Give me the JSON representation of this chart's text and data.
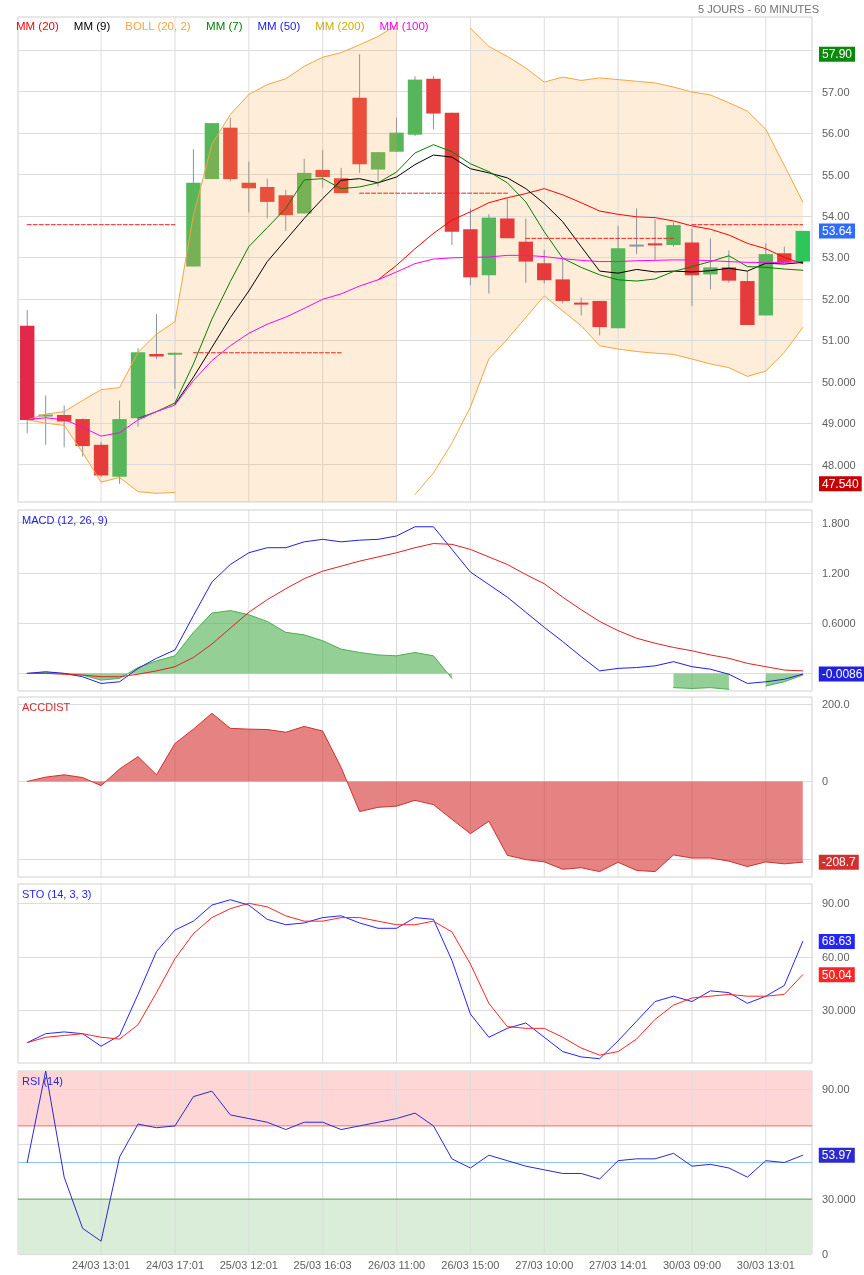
{
  "chart_data": [
    {
      "type": "candlestick",
      "subtitle": "5 JOURS - 60 MINUTES",
      "categories": [
        null,
        null,
        null,
        null,
        null,
        null,
        null,
        null,
        null,
        null,
        null,
        null,
        null,
        null,
        null,
        null,
        null,
        null,
        null,
        null,
        null,
        null,
        null,
        null,
        null,
        null,
        null,
        null,
        null,
        null,
        null,
        null,
        null,
        null,
        null,
        null,
        null,
        null,
        null,
        null,
        null,
        null,
        null
      ],
      "ohlc": [
        [
          51.35,
          51.73,
          48.76,
          49.08
        ],
        [
          49.18,
          49.67,
          48.48,
          49.21
        ],
        [
          49.2,
          49.43,
          48.42,
          49.04
        ],
        [
          49.1,
          49.12,
          48.2,
          48.45
        ],
        [
          48.48,
          48.55,
          47.7,
          47.74
        ],
        [
          47.71,
          49.55,
          47.54,
          49.1
        ],
        [
          49.12,
          50.81,
          48.92,
          50.71
        ],
        [
          50.67,
          51.63,
          50.55,
          50.61
        ],
        [
          50.65,
          50.71,
          49.83,
          50.7
        ],
        [
          52.78,
          55.61,
          52.78,
          54.8
        ],
        [
          54.89,
          56.24,
          54.89,
          56.24
        ],
        [
          56.13,
          56.37,
          54.83,
          54.89
        ],
        [
          54.8,
          55.31,
          54.09,
          54.67
        ],
        [
          54.7,
          54.9,
          53.94,
          54.34
        ],
        [
          54.5,
          54.63,
          53.64,
          54.02
        ],
        [
          54.06,
          55.38,
          54.06,
          55.04
        ],
        [
          55.11,
          55.59,
          54.68,
          54.94
        ],
        [
          54.91,
          55.16,
          54.55,
          54.55
        ],
        [
          56.85,
          57.9,
          55.04,
          55.25
        ],
        [
          55.12,
          55.54,
          54.71,
          55.54
        ],
        [
          55.55,
          56.37,
          55.55,
          56.01
        ],
        [
          55.96,
          57.37,
          55.93,
          57.29
        ],
        [
          57.31,
          57.37,
          56.09,
          56.47
        ],
        [
          56.49,
          56.49,
          53.3,
          53.62
        ],
        [
          53.68,
          54.18,
          52.33,
          52.52
        ],
        [
          52.57,
          54.04,
          52.13,
          53.96
        ],
        [
          53.94,
          54.43,
          53.46,
          53.46
        ],
        [
          53.38,
          53.94,
          52.39,
          52.9
        ],
        [
          52.86,
          53.18,
          52.37,
          52.45
        ],
        [
          52.47,
          52.98,
          51.89,
          51.95
        ],
        [
          51.91,
          52.03,
          51.6,
          51.87
        ],
        [
          51.95,
          51.95,
          51.12,
          51.32
        ],
        [
          51.29,
          53.76,
          51.29,
          53.22
        ],
        [
          53.31,
          54.18,
          53.08,
          53.31
        ],
        [
          53.34,
          53.92,
          52.94,
          53.29
        ],
        [
          53.3,
          53.85,
          53.26,
          53.78
        ],
        [
          53.36,
          53.7,
          51.83,
          52.57
        ],
        [
          52.59,
          53.46,
          52.23,
          52.76
        ],
        [
          52.76,
          53.17,
          52.39,
          52.44
        ],
        [
          52.43,
          52.67,
          51.37,
          51.37
        ],
        [
          51.6,
          53.34,
          51.6,
          53.08
        ],
        [
          53.1,
          53.26,
          52.89,
          52.89
        ],
        [
          52.9,
          53.64,
          52.9,
          53.64
        ]
      ],
      "colors": [
        "#e3284a",
        "#57b65a",
        "#e53b3b",
        "#e53b3b",
        "#e53b3b",
        "#57b65a",
        "#57b65a",
        "#e53b3b",
        "#57b65a",
        "#57b65a",
        "#57b65a",
        "#e53b3b",
        "#e53b3b",
        "#e53b3b",
        "#e53b3b",
        "#57b65a",
        "#e53b3b",
        "#e53b3b",
        "#e53b3b",
        "#57b65a",
        "#57b65a",
        "#57b65a",
        "#e53b3b",
        "#e53b3b",
        "#e53b3b",
        "#57b65a",
        "#e53b3b",
        "#e53b3b",
        "#e53b3b",
        "#e53b3b",
        "#e53b3b",
        "#e53b3b",
        "#57b65a",
        "#8c96a0",
        "#e53b3b",
        "#57b65a",
        "#e53b3b",
        "#57b65a",
        "#e53b3b",
        "#e53b3b",
        "#57b65a",
        "#e53b3b",
        "#2ec55a"
      ],
      "series": [
        {
          "name": "MM (20)",
          "type": "line",
          "color": "#ff0000",
          "values": [
            null,
            null,
            null,
            null,
            null,
            null,
            null,
            null,
            null,
            null,
            null,
            null,
            null,
            null,
            null,
            null,
            null,
            null,
            null,
            52.46,
            52.81,
            53.21,
            53.58,
            53.9,
            54.1,
            54.32,
            54.44,
            54.54,
            54.66,
            54.51,
            54.32,
            54.12,
            54.04,
            53.98,
            53.96,
            53.88,
            53.76,
            53.68,
            53.54,
            53.34,
            53.21,
            53.0,
            52.85
          ]
        },
        {
          "name": "MM (9)",
          "type": "line",
          "color": "#000000",
          "values": [
            null,
            null,
            null,
            null,
            null,
            null,
            null,
            null,
            49.46,
            50.11,
            50.83,
            51.55,
            52.19,
            52.9,
            53.42,
            53.94,
            54.42,
            54.86,
            54.9,
            54.8,
            54.94,
            55.24,
            55.47,
            55.42,
            55.14,
            55.04,
            54.92,
            54.66,
            54.3,
            53.86,
            53.26,
            52.67,
            52.62,
            52.71,
            52.65,
            52.67,
            52.65,
            52.68,
            52.74,
            52.67,
            52.86,
            52.84,
            52.88
          ]
        },
        {
          "name": "BOLL (20, 2)",
          "type": "line",
          "color": "#f5a442",
          "values": [
            49.08,
            49.22,
            49.28,
            49.55,
            49.81,
            49.86,
            50.71,
            51.15,
            51.45,
            null,
            null,
            null,
            null,
            null,
            null,
            null,
            null,
            null,
            null,
            null,
            null,
            null,
            null,
            null,
            58.53,
            58.09,
            57.85,
            57.57,
            57.23,
            57.35,
            57.27,
            57.33,
            57.29,
            57.25,
            57.21,
            57.11,
            56.99,
            56.92,
            56.73,
            56.53,
            56.09,
            55.22,
            54.34
          ],
          "upper": [
            49.08,
            49.22,
            49.28,
            49.55,
            49.81,
            49.86,
            50.71,
            51.15,
            51.45,
            null,
            null,
            null,
            null,
            null,
            null,
            null,
            null,
            null,
            null,
            null,
            null,
            null,
            null,
            null,
            58.53,
            58.09,
            57.85,
            57.57,
            57.23,
            57.35,
            57.27,
            57.33,
            57.29,
            57.25,
            57.21,
            57.11,
            56.99,
            56.92,
            56.73,
            56.53,
            56.09,
            55.22,
            54.34
          ],
          "lower": [
            49.08,
            49.0,
            48.95,
            48.29,
            47.58,
            47.69,
            47.35,
            47.31,
            47.33,
            null,
            null,
            null,
            null,
            null,
            null,
            null,
            null,
            null,
            null,
            null,
            null,
            null,
            null,
            null,
            49.39,
            50.55,
            51.03,
            51.55,
            52.07,
            51.71,
            51.35,
            50.87,
            50.79,
            50.73,
            50.69,
            50.66,
            50.55,
            50.43,
            50.34,
            50.13,
            50.26,
            50.71,
            51.31
          ]
        },
        {
          "type": "area",
          "color": "#f5a442",
          "values": [
            null,
            null,
            null,
            null,
            null,
            null,
            null,
            null,
            51.45,
            54.02,
            55.73,
            56.45,
            56.93,
            57.17,
            57.31,
            57.61,
            57.83,
            57.94,
            58.13,
            58.33,
            58.61,
            null,
            null,
            null,
            null,
            null,
            null,
            null,
            null,
            null,
            null,
            null,
            null,
            null,
            null,
            null,
            null,
            null,
            null,
            null,
            null,
            null,
            null
          ]
        },
        {
          "type": "line",
          "color": "#f5a442",
          "values": [
            49.08,
            49.0,
            48.95,
            48.29,
            47.58,
            47.69,
            47.35,
            47.31,
            47.33,
            null,
            null,
            null,
            null,
            null,
            null,
            null,
            null,
            null,
            null,
            null,
            null,
            47.28,
            47.8,
            48.52,
            49.39,
            50.55,
            51.03,
            51.55,
            52.07,
            51.71,
            51.35,
            50.87,
            50.79,
            50.73,
            50.69,
            50.66,
            50.55,
            50.43,
            50.34,
            50.13,
            50.26,
            50.71,
            51.31
          ]
        },
        {
          "name": "MM (7)",
          "type": "line",
          "color": "#008000",
          "values": [
            null,
            null,
            null,
            null,
            null,
            null,
            49.12,
            49.28,
            49.49,
            50.43,
            51.51,
            52.42,
            53.26,
            53.72,
            54.18,
            54.87,
            54.9,
            54.66,
            54.7,
            54.8,
            55.06,
            55.52,
            55.72,
            55.55,
            55.26,
            55.07,
            54.8,
            54.34,
            53.62,
            52.98,
            52.76,
            52.58,
            52.46,
            52.43,
            52.48,
            52.66,
            52.78,
            52.9,
            53.04,
            52.78,
            52.76,
            52.72,
            52.69
          ]
        },
        {
          "name": "MM (50)",
          "type": "line",
          "color": "#2020e0",
          "values": [
            null,
            null,
            null,
            null,
            null,
            null,
            null,
            null,
            null,
            null,
            null,
            null,
            null,
            null,
            null,
            null,
            null,
            null,
            null,
            null,
            null,
            null,
            null,
            null,
            null,
            null,
            null,
            null,
            null,
            null,
            null,
            null,
            null,
            null,
            null,
            null,
            null,
            null,
            null,
            null,
            null,
            null,
            null
          ]
        },
        {
          "name": "MM (200)",
          "type": "line",
          "color": "#c8b000",
          "values": [
            null,
            null,
            null,
            null,
            null,
            null,
            null,
            null,
            null,
            null,
            null,
            null,
            null,
            null,
            null,
            null,
            null,
            null,
            null,
            null,
            null,
            null,
            null,
            null,
            null,
            null,
            null,
            null,
            null,
            null,
            null,
            null,
            null,
            null,
            null,
            null,
            null,
            null,
            null,
            null,
            null,
            null,
            null
          ]
        },
        {
          "name": "MM (100)",
          "type": "line",
          "color": "#ff00ff",
          "values": [
            49.09,
            49.13,
            49.09,
            48.9,
            48.69,
            48.77,
            49.08,
            49.28,
            49.44,
            50.03,
            50.51,
            50.87,
            51.17,
            51.39,
            51.56,
            51.77,
            51.99,
            52.12,
            52.31,
            52.46,
            52.65,
            52.85,
            52.96,
            52.99,
            53.0,
            53.01,
            53.05,
            53.05,
            53.02,
            52.97,
            52.93,
            52.9,
            52.9,
            52.92,
            52.93,
            52.94,
            52.94,
            52.92,
            52.9,
            52.88,
            52.88,
            52.88,
            52.9
          ]
        },
        {
          "type": "line",
          "color": "#ee2222",
          "line_style": "dashed",
          "values": [
            53.79,
            53.79,
            53.79,
            53.79,
            53.79,
            53.79,
            53.79,
            53.79,
            53.79,
            null,
            null,
            null,
            null,
            null,
            null,
            null,
            null,
            null,
            null,
            null,
            null,
            null,
            null,
            null,
            null,
            null,
            null,
            null,
            null,
            null,
            null,
            null,
            null,
            null,
            null,
            null,
            null,
            null,
            null,
            null,
            null,
            null,
            null
          ]
        },
        {
          "type": "line",
          "color": "#ee2222",
          "line_style": "dashed",
          "values": [
            null,
            null,
            null,
            null,
            null,
            null,
            null,
            null,
            null,
            50.7,
            50.7,
            50.7,
            50.7,
            50.7,
            50.7,
            50.7,
            50.7,
            50.7,
            null,
            null,
            null,
            null,
            null,
            null,
            null,
            null,
            null,
            null,
            null,
            null,
            null,
            null,
            null,
            null,
            null,
            null,
            null,
            null,
            null,
            null,
            null,
            null,
            null
          ]
        },
        {
          "type": "line",
          "color": "#ee2222",
          "line_style": "dashed",
          "values": [
            null,
            null,
            null,
            null,
            null,
            null,
            null,
            null,
            null,
            null,
            null,
            null,
            null,
            null,
            null,
            null,
            null,
            null,
            54.55,
            54.55,
            54.55,
            54.55,
            54.55,
            54.55,
            54.55,
            54.55,
            54.55,
            null,
            null,
            null,
            null,
            null,
            null,
            null,
            null,
            null,
            null,
            null,
            null,
            null,
            null,
            null,
            null
          ]
        },
        {
          "type": "line",
          "color": "#ee2222",
          "line_style": "dashed",
          "values": [
            null,
            null,
            null,
            null,
            null,
            null,
            null,
            null,
            null,
            null,
            null,
            null,
            null,
            null,
            null,
            null,
            null,
            null,
            null,
            null,
            null,
            null,
            null,
            null,
            null,
            null,
            null,
            53.46,
            53.46,
            53.46,
            53.46,
            53.46,
            53.46,
            53.46,
            53.46,
            53.46,
            null,
            null,
            null,
            null,
            null,
            null,
            null
          ]
        },
        {
          "type": "line",
          "color": "#ee2222",
          "line_style": "dashed",
          "values": [
            null,
            null,
            null,
            null,
            null,
            null,
            null,
            null,
            null,
            null,
            null,
            null,
            null,
            null,
            null,
            null,
            null,
            null,
            null,
            null,
            null,
            null,
            null,
            null,
            null,
            null,
            null,
            null,
            null,
            null,
            null,
            null,
            null,
            null,
            null,
            null,
            53.79,
            53.79,
            53.79,
            53.79,
            53.79,
            53.79,
            53.79
          ]
        }
      ],
      "ylim": [
        47.1,
        58.8
      ],
      "yticks": [
        {
          "value": 48,
          "label": "48.000"
        },
        {
          "value": 49,
          "label": "49.000"
        },
        {
          "value": 50,
          "label": "50.000"
        },
        {
          "value": 51,
          "label": "51.00"
        },
        {
          "value": 52,
          "label": "52.00"
        },
        {
          "value": 53,
          "label": "53.00"
        },
        {
          "value": 54,
          "label": "54.00"
        },
        {
          "value": 55,
          "label": "55.00"
        },
        {
          "value": 56,
          "label": "56.00"
        },
        {
          "value": 57,
          "label": "57.00"
        },
        {
          "value": 58,
          "label": null
        }
      ],
      "grid": true,
      "legend": "top left",
      "annotations": [
        "57.90",
        "53.64",
        "47.540"
      ]
    },
    {
      "type": "line",
      "title": "MACD (12, 26, 9)",
      "categories": [
        null,
        null,
        null,
        null,
        null,
        null,
        null,
        null,
        null,
        null,
        null,
        null,
        null,
        null,
        null,
        null,
        null,
        null,
        null,
        null,
        null,
        null,
        null,
        null,
        null,
        null,
        null,
        null,
        null,
        null,
        null,
        null,
        null,
        null,
        null,
        null,
        null,
        null,
        null,
        null,
        null,
        null,
        null
      ],
      "series": [
        {
          "color": "#2020e0",
          "values": [
            0,
            0.02,
            0,
            -0.04,
            -0.12,
            -0.1,
            0.06,
            0.18,
            0.28,
            0.69,
            1.09,
            1.3,
            1.44,
            1.5,
            1.5,
            1.57,
            1.6,
            1.57,
            1.59,
            1.6,
            1.64,
            1.75,
            1.75,
            1.48,
            1.21,
            1.06,
            0.91,
            0.73,
            0.55,
            0.38,
            0.2,
            0.03,
            0.06,
            0.07,
            0.09,
            0.14,
            0.08,
            0.05,
            -0.01,
            -0.12,
            -0.1,
            -0.07,
            -0.0086
          ],
          "value_labels": [
            null,
            null,
            null,
            null,
            null,
            null,
            null,
            null,
            null,
            null,
            null,
            null,
            null,
            null,
            null,
            null,
            null,
            null,
            null,
            null,
            null,
            null,
            null,
            null,
            null,
            null,
            null,
            null,
            null,
            null,
            null,
            null,
            null,
            null,
            null,
            null,
            null,
            null,
            null,
            null,
            null,
            null,
            "-0.0086"
          ]
        },
        {
          "color": "#e02020",
          "values": [
            0,
            0,
            -0.01,
            -0.02,
            -0.04,
            -0.04,
            -0.01,
            0.03,
            0.08,
            0.19,
            0.35,
            0.54,
            0.73,
            0.88,
            1.01,
            1.13,
            1.22,
            1.28,
            1.34,
            1.39,
            1.44,
            1.5,
            1.55,
            1.54,
            1.48,
            1.39,
            1.3,
            1.18,
            1.07,
            0.91,
            0.76,
            0.62,
            0.51,
            0.42,
            0.36,
            0.31,
            0.27,
            0.22,
            0.18,
            0.12,
            0.08,
            0.04,
            0.03
          ]
        },
        {
          "type": "area",
          "color": "#4caf50",
          "values": [
            0,
            0.01,
            0,
            -0.02,
            -0.08,
            -0.06,
            0.07,
            0.15,
            0.21,
            0.49,
            0.72,
            0.75,
            0.7,
            0.62,
            0.49,
            0.46,
            0.39,
            0.29,
            0.25,
            0.22,
            0.21,
            0.25,
            0.21,
            -0.06,
            null,
            null,
            null,
            null,
            null,
            null,
            null,
            null,
            null,
            null,
            null,
            -0.17,
            -0.18,
            -0.17,
            -0.19,
            null,
            -0.15,
            -0.1,
            -0.02
          ]
        }
      ],
      "ylim": [
        -0.21,
        1.95
      ],
      "yticks": [
        {
          "value": 0,
          "label": null
        },
        {
          "value": 0.6,
          "label": "0.6000"
        },
        {
          "value": 1.2,
          "label": "1.200"
        },
        {
          "value": 1.8,
          "label": "1.800"
        }
      ],
      "grid": true
    },
    {
      "type": "area",
      "title": "ACCDIST",
      "categories": [
        null,
        null,
        null,
        null,
        null,
        null,
        null,
        null,
        null,
        null,
        null,
        null,
        null,
        null,
        null,
        null,
        null,
        null,
        null,
        null,
        null,
        null,
        null,
        null,
        null,
        null,
        null,
        null,
        null,
        null,
        null,
        null,
        null,
        null,
        null,
        null,
        null,
        null,
        null,
        null,
        null,
        null,
        null
      ],
      "series": [
        {
          "color": "#d32f2f",
          "values": [
            0,
            11,
            17,
            10,
            -11,
            32,
            64,
            17,
            98,
            135,
            176,
            137,
            135,
            134,
            127,
            142,
            130,
            36,
            -78,
            -67,
            -64,
            -49,
            -60,
            -98,
            -135,
            -103,
            -191,
            -202,
            -208,
            -227,
            -223,
            -233,
            -209,
            -230,
            -233,
            -190,
            -198,
            -198,
            -206,
            -220,
            -208,
            -213,
            -208.7
          ],
          "value_labels": [
            null,
            null,
            null,
            null,
            null,
            null,
            null,
            null,
            null,
            null,
            null,
            null,
            null,
            null,
            null,
            null,
            null,
            null,
            null,
            null,
            null,
            null,
            null,
            null,
            null,
            null,
            null,
            null,
            null,
            null,
            null,
            null,
            null,
            null,
            null,
            null,
            null,
            null,
            null,
            null,
            null,
            null,
            "-208.7"
          ]
        }
      ],
      "ylim": [
        -247,
        218
      ],
      "yticks": [
        {
          "value": -200,
          "label": null
        },
        0,
        {
          "value": 200,
          "label": "200.0"
        }
      ],
      "grid": true
    },
    {
      "type": "line",
      "title": "STO (14, 3, 3)",
      "categories": [
        null,
        null,
        null,
        null,
        null,
        null,
        null,
        null,
        null,
        null,
        null,
        null,
        null,
        null,
        null,
        null,
        null,
        null,
        null,
        null,
        null,
        null,
        null,
        null,
        null,
        null,
        null,
        null,
        null,
        null,
        null,
        null,
        null,
        null,
        null,
        null,
        null,
        null,
        null,
        null,
        null,
        null,
        null
      ],
      "series": [
        {
          "color": "#2424ff",
          "values": [
            12,
            17,
            18,
            17,
            10,
            16,
            39,
            63,
            75,
            80,
            89,
            92,
            89,
            81,
            78,
            79,
            82,
            83,
            79,
            76,
            76,
            82,
            81,
            58,
            28,
            15,
            20,
            23,
            15,
            7,
            4,
            3,
            13,
            24,
            35,
            38,
            35,
            41,
            40,
            34,
            38,
            44,
            68.63
          ],
          "value_labels": [
            null,
            null,
            null,
            null,
            null,
            null,
            null,
            null,
            null,
            null,
            null,
            null,
            null,
            null,
            null,
            null,
            null,
            null,
            null,
            null,
            null,
            null,
            null,
            null,
            null,
            null,
            null,
            null,
            null,
            null,
            null,
            null,
            null,
            null,
            null,
            null,
            null,
            null,
            null,
            null,
            null,
            null,
            "68.63"
          ]
        },
        {
          "color": "#ff2424",
          "values": [
            12,
            15,
            16,
            17,
            15,
            14,
            22,
            40,
            59,
            73,
            82,
            87,
            90,
            88,
            83,
            80,
            80,
            82,
            82,
            80,
            78,
            78,
            80,
            74,
            56,
            34,
            21,
            20,
            20,
            15,
            9,
            5,
            7,
            14,
            25,
            33,
            37,
            38,
            39,
            38,
            38,
            39,
            50.04
          ],
          "value_labels": [
            null,
            null,
            null,
            null,
            null,
            null,
            null,
            null,
            null,
            null,
            null,
            null,
            null,
            null,
            null,
            null,
            null,
            null,
            null,
            null,
            null,
            null,
            null,
            null,
            null,
            null,
            null,
            null,
            null,
            null,
            null,
            null,
            null,
            null,
            null,
            null,
            null,
            null,
            null,
            null,
            null,
            null,
            "50.04"
          ]
        }
      ],
      "ylim": [
        0.6,
        100.8
      ],
      "yticks": [
        {
          "value": 30,
          "label": "30.000"
        },
        {
          "value": 60,
          "label": "60.00"
        },
        {
          "value": 90,
          "label": "90.00"
        }
      ],
      "grid": true
    },
    {
      "type": "line",
      "title": "RSI (14)",
      "categories": [
        null,
        null,
        null,
        null,
        "24/03 13:01",
        null,
        null,
        null,
        "24/03 17:01",
        null,
        null,
        null,
        "25/03 12:01",
        null,
        null,
        null,
        "25/03 16:03",
        null,
        null,
        null,
        "26/03 11:00",
        null,
        null,
        null,
        "26/03 15:00",
        null,
        null,
        null,
        "27/03 10:00",
        null,
        null,
        null,
        "27/03 14:01",
        null,
        null,
        null,
        "30/03 09:00",
        null,
        null,
        null,
        "30/03 13:01",
        null,
        null
      ],
      "series": [
        {
          "color": "#2a2ad0",
          "values": [
            50,
            100,
            42,
            14,
            7,
            53,
            71,
            69,
            70,
            86,
            89,
            76,
            74,
            72,
            68,
            72,
            72,
            68,
            70,
            72,
            74,
            77,
            70,
            52,
            47,
            54,
            51,
            48,
            46,
            44,
            44,
            41,
            51,
            52,
            52,
            55,
            48,
            49,
            47,
            42,
            51,
            50,
            53.97
          ],
          "value_labels": [
            null,
            null,
            null,
            null,
            null,
            null,
            null,
            null,
            null,
            null,
            null,
            null,
            null,
            null,
            null,
            null,
            null,
            null,
            null,
            null,
            null,
            null,
            null,
            null,
            null,
            null,
            null,
            null,
            null,
            null,
            null,
            null,
            null,
            null,
            null,
            null,
            null,
            null,
            null,
            null,
            null,
            null,
            "53.97"
          ]
        }
      ],
      "ylim": [
        0,
        100
      ],
      "yticks": [
        0,
        {
          "value": 30,
          "label": "30.000"
        },
        {
          "value": 60,
          "label": null
        },
        {
          "value": 90,
          "label": "90.00"
        }
      ],
      "grid": true,
      "ref_lines": [
        {
          "axis": "y",
          "value": 70,
          "color": "#f26b6b"
        },
        {
          "axis": "y",
          "value": 50,
          "color": "#8fc4f2"
        },
        {
          "axis": "y",
          "value": 30,
          "color": "#4aa84a"
        }
      ],
      "bands": [
        {
          "axis": "y",
          "from": 70,
          "to": 100,
          "color": "#ffd6d6"
        },
        {
          "axis": "y",
          "from": 0,
          "to": 30,
          "color": "#d9edd9"
        }
      ]
    }
  ]
}
